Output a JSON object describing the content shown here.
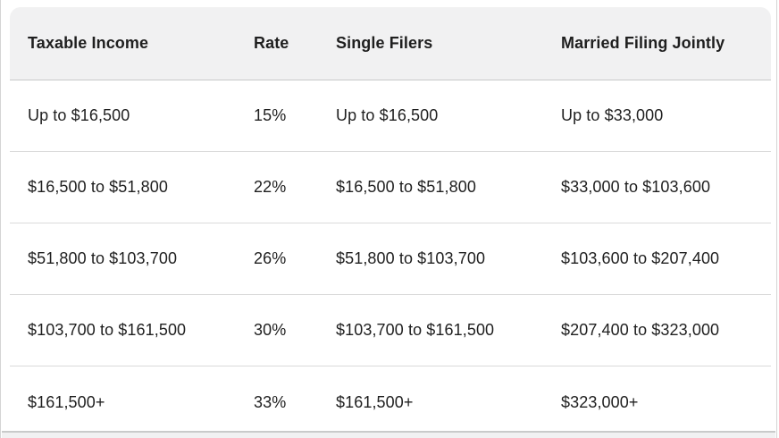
{
  "chart_data": {
    "type": "table",
    "title": "",
    "columns": [
      "Taxable Income",
      "Rate",
      "Single Filers",
      "Married Filing Jointly"
    ],
    "rows": [
      [
        "Up to $16,500",
        "15%",
        "Up to $16,500",
        "Up to $33,000"
      ],
      [
        "$16,500 to $51,800",
        "22%",
        "$16,500 to $51,800",
        "$33,000 to $103,600"
      ],
      [
        "$51,800 to $103,700",
        "26%",
        "$51,800 to $103,700",
        "$103,600 to $207,400"
      ],
      [
        "$103,700 to $161,500",
        "30%",
        "$103,700 to $161,500",
        "$207,400 to $323,000"
      ],
      [
        "$161,500+",
        "33%",
        "$161,500+",
        "$323,000+"
      ]
    ]
  },
  "table": {
    "headers": {
      "taxable_income": "Taxable Income",
      "rate": "Rate",
      "single_filers": "Single Filers",
      "married_filing_jointly": "Married Filing Jointly"
    },
    "rows": [
      [
        "Up to $16,500",
        "15%",
        "Up to $16,500",
        "Up to $33,000"
      ],
      [
        "$16,500 to $51,800",
        "22%",
        "$16,500 to $51,800",
        "$33,000 to $103,600"
      ],
      [
        "$51,800 to $103,700",
        "26%",
        "$51,800 to $103,700",
        "$103,600 to $207,400"
      ],
      [
        "$103,700 to $161,500",
        "30%",
        "$103,700 to $161,500",
        "$207,400 to $323,000"
      ],
      [
        "$161,500+",
        "33%",
        "$161,500+",
        "$323,000+"
      ]
    ]
  },
  "colors": {
    "header_bg": "#f1f1f2",
    "row_bg": "#ffffff",
    "row_divider": "#dadada",
    "header_divider": "#c7c8c9",
    "text": "#1f1f1f",
    "panel_edge": "#d4d4d4"
  }
}
